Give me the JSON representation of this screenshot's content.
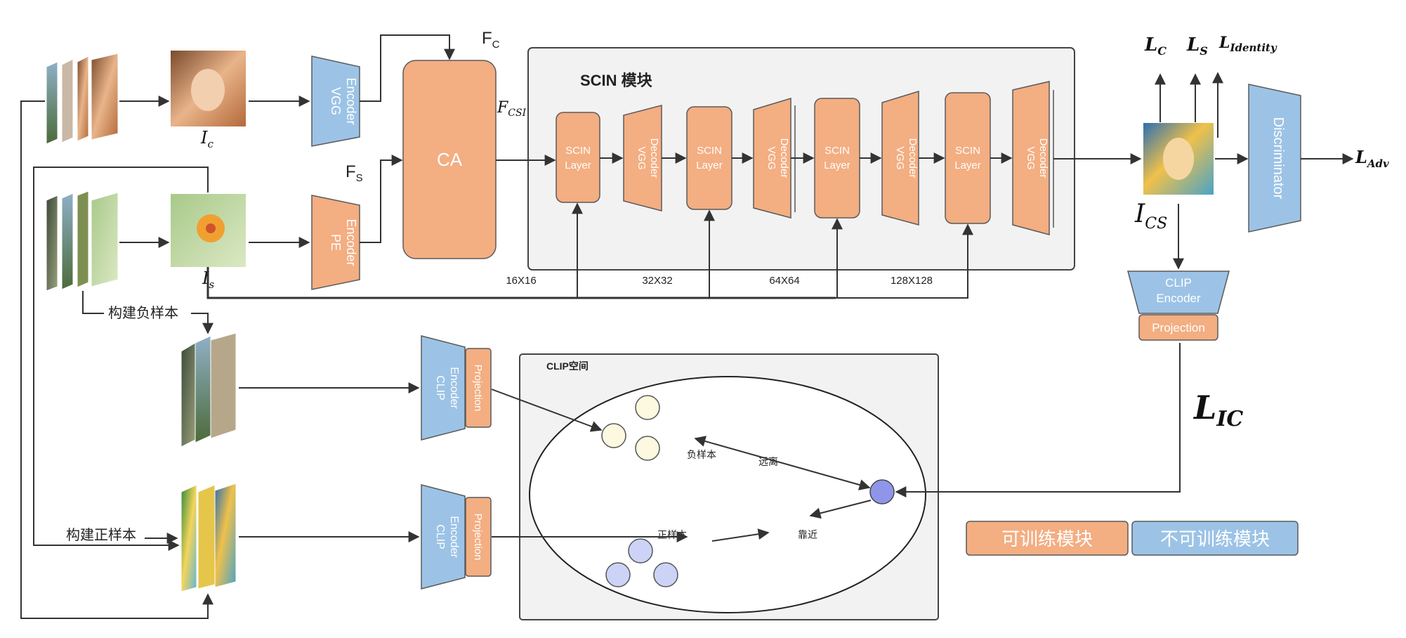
{
  "labels": {
    "fc": "F",
    "fc_sub": "C",
    "fs": "F",
    "fs_sub": "S",
    "fcsi": "F",
    "fcsi_sub": "CSI",
    "ic": "I",
    "ic_sub": "c",
    "is": "I",
    "is_sub": "s",
    "ics": "I",
    "ics_sub": "CS",
    "lc": "L",
    "lc_sub": "C",
    "ls": "L",
    "ls_sub": "S",
    "lid": "L",
    "lid_sub": "Identity",
    "ladv": "L",
    "ladv_sub": "Adv",
    "lic": "L",
    "lic_sub": "IC",
    "neg_build": "构建负样本",
    "pos_build": "构建正样本"
  },
  "encoders": {
    "vgg": [
      "VGG",
      "Encoder"
    ],
    "pe": [
      "PE",
      "Encoder"
    ],
    "ca": "CA",
    "clip": [
      "CLIP",
      "Encoder"
    ],
    "projection": "Projection",
    "discriminator": "Discriminator"
  },
  "scin": {
    "title": "SCIN 模块",
    "layer": [
      "SCIN",
      "Layer"
    ],
    "decoder": [
      "VGG",
      "Decoder"
    ],
    "resolutions": [
      "16X16",
      "32X32",
      "64X64",
      "128X128"
    ]
  },
  "clip_space": {
    "title": "CLIP空间",
    "negative": "负样本",
    "positive": "正样本",
    "far": "远离",
    "near": "靠近"
  },
  "legend": {
    "trainable": "可训练模块",
    "frozen": "不可训练模块"
  },
  "colors": {
    "trainable": "#f3ae82",
    "frozen": "#9cc3e6",
    "negative_dot": "#fdf8e0",
    "positive_dot": "#cdd3f7",
    "anchor_dot": "#8f96ea"
  }
}
